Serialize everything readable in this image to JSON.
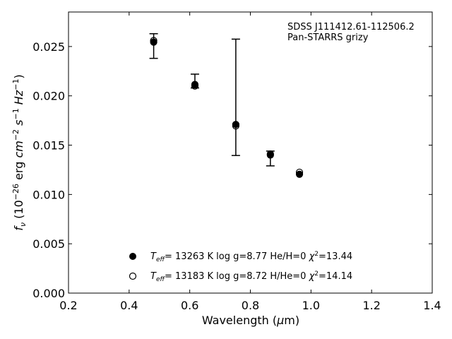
{
  "chart_data": {
    "type": "scatter",
    "title": "",
    "annotation_lines": [
      "SDSS J111412.61-112506.2",
      "Pan-STARRS grizy"
    ],
    "xlabel": {
      "main": "Wavelength (",
      "mu": "μ",
      "unit": "m)"
    },
    "ylabel": {
      "f": "f",
      "nu": "ν",
      "a": " (10",
      "e1": "−26",
      "b": " erg ",
      "cm": "cm",
      "e2": "−2",
      "s": "s",
      "e3": "−1",
      "hz": "Hz",
      "e4": "−1",
      "close": ")"
    },
    "xlim": [
      0.2,
      1.4
    ],
    "ylim": [
      0.0,
      0.0285
    ],
    "xticks": [
      0.2,
      0.4,
      0.6,
      0.8,
      1.0,
      1.2,
      1.4
    ],
    "xtick_labels": [
      "0.2",
      "0.4",
      "0.6",
      "0.8",
      "1.0",
      "1.2",
      "1.4"
    ],
    "yticks": [
      0.0,
      0.005,
      0.01,
      0.015,
      0.02,
      0.025
    ],
    "ytick_labels": [
      "0.000",
      "0.005",
      "0.010",
      "0.015",
      "0.020",
      "0.025"
    ],
    "grid": false,
    "legend_position": "lower center",
    "observed": {
      "x": [
        0.481,
        0.617,
        0.752,
        0.866,
        0.962
      ],
      "y": [
        0.02505,
        0.0215,
        0.01985,
        0.01365,
        null
      ],
      "yerr": [
        0.00125,
        0.0007,
        0.0059,
        0.00075,
        null
      ]
    },
    "series": [
      {
        "name": "He/H=0",
        "marker": "filled-circle",
        "legend": {
          "T": "T",
          "sub": "eff",
          "a": "= 13263 K  log g=8.77  He/H=0  ",
          "chi": "χ",
          "sup": "2",
          "b": "=13.44"
        },
        "x": [
          0.481,
          0.617,
          0.752,
          0.866,
          0.962
        ],
        "y": [
          0.02545,
          0.02115,
          0.0171,
          0.014,
          0.01205
        ]
      },
      {
        "name": "H/He=0",
        "marker": "open-circle",
        "legend": {
          "T": "T",
          "sub": "eff",
          "a": "= 13183 K  log g=8.72  H/He=0  ",
          "chi": "χ",
          "sup": "2",
          "b": "=14.14"
        },
        "x": [
          0.481,
          0.617,
          0.752,
          0.866,
          0.962
        ],
        "y": [
          0.0256,
          0.021,
          0.01695,
          0.0141,
          0.01225
        ]
      }
    ]
  }
}
